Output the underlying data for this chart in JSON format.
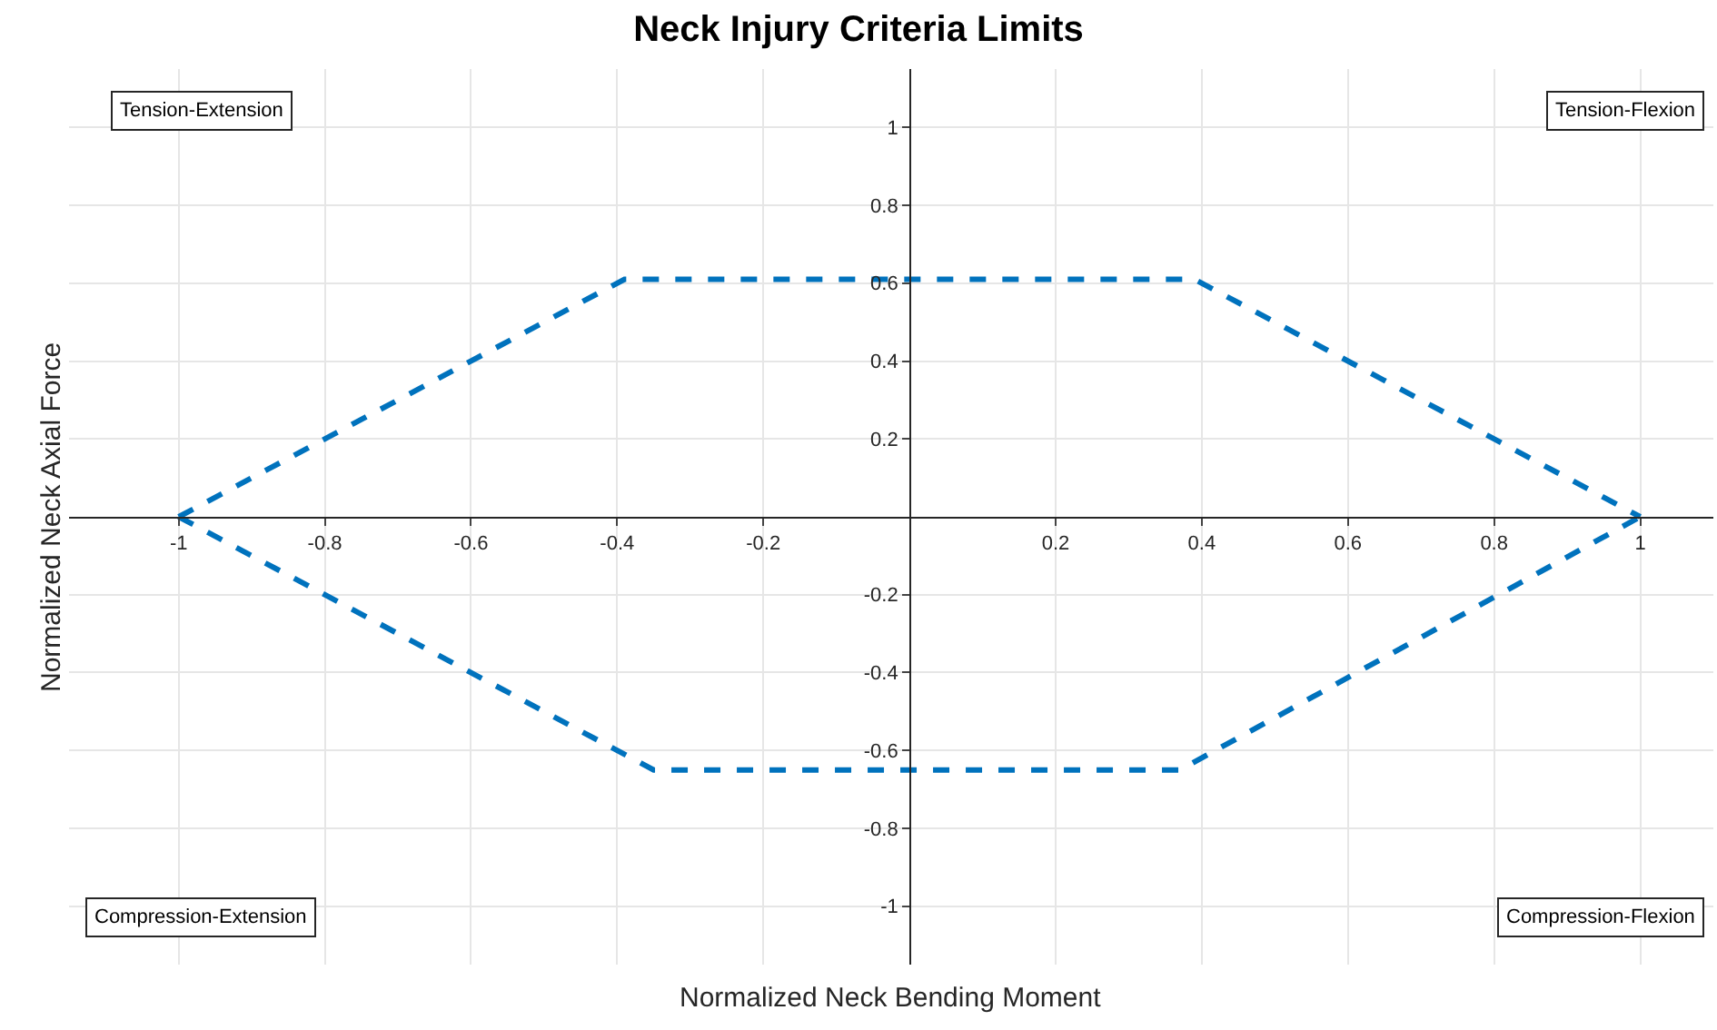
{
  "chart_data": {
    "type": "line",
    "title": "Neck Injury Criteria Limits",
    "xlabel": "Normalized Neck Bending Moment",
    "ylabel": "Normalized Neck Axial Force",
    "series": [
      {
        "color": "#0072bd",
        "x": [
          -1,
          -0.39,
          0.39,
          1
        ],
        "values": [
          0,
          0.61,
          0.61,
          0
        ]
      },
      {
        "color": "#0072bd",
        "x": [
          -1,
          -0.35,
          0.37,
          1
        ],
        "values": [
          0,
          -0.65,
          -0.65,
          0
        ]
      }
    ],
    "line_style": "dashed",
    "marker": "none",
    "grid": true,
    "xlim": [
      -1.15,
      1.1
    ],
    "ylim": [
      -1.15,
      1.15
    ],
    "xticks": [
      -1,
      -0.8,
      -0.6,
      -0.4,
      -0.2,
      0.2,
      0.4,
      0.6,
      0.8,
      1
    ],
    "yticks": [
      -1,
      -0.8,
      -0.6,
      -0.4,
      -0.2,
      0.2,
      0.4,
      0.6,
      0.8,
      1
    ],
    "annotations": [
      "Tension-Extension",
      "Tension-Flexion",
      "Compression-Extension",
      "Compression-Flexion"
    ]
  }
}
